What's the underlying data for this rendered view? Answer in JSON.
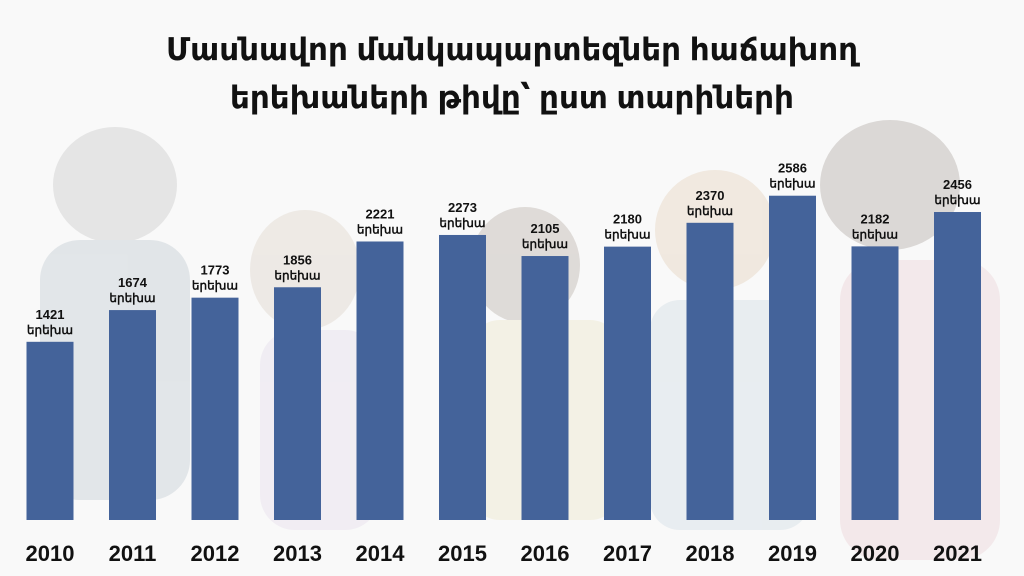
{
  "title_lines": [
    "Մասնավոր մանկապարտեզներ հաճախող",
    "երեխաների թիվը՝ ըստ տարիների"
  ],
  "chart_data": {
    "type": "bar",
    "title": "Մասնավոր մանկապարտեզներ հաճախող երեխաների թիվը՝ ըստ տարիների",
    "categories": [
      "2010",
      "2011",
      "2012",
      "2013",
      "2014",
      "2015",
      "2016",
      "2017",
      "2018",
      "2019",
      "2020",
      "2021"
    ],
    "values": [
      1421,
      1674,
      1773,
      1856,
      2221,
      2273,
      2105,
      2180,
      2370,
      2586,
      2182,
      2456
    ],
    "value_unit_label": "երեխա",
    "xlabel": "",
    "ylabel": "",
    "ylim": [
      0,
      2600
    ],
    "grid": false,
    "legend": "none",
    "bar_color": "#44639a"
  }
}
